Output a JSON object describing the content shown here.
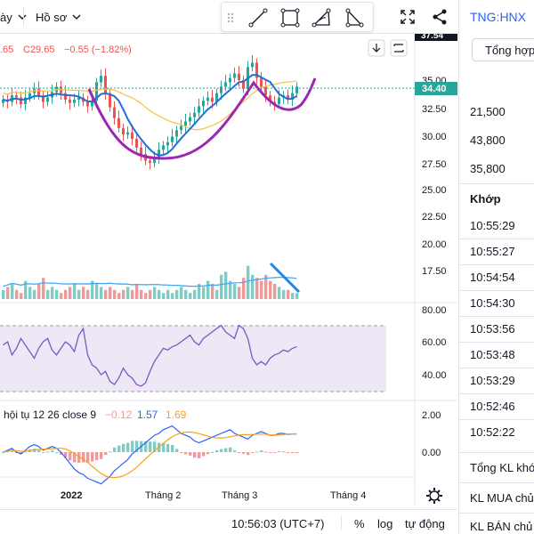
{
  "toolbar": {
    "interval_label": "ày",
    "profile_label": "Hồ sơ",
    "draw_tools": [
      "trend-line-tool",
      "rectangle-tool",
      "path-tool",
      "triangle-tool"
    ]
  },
  "legend": {
    "ohlc_text": ".65  C29.65  −0.55 (−1.82%)",
    "price_open_cut": ".65",
    "close_text": "C29.65",
    "change_text": "−0.55 (−1.82%)"
  },
  "price_axis": {
    "ticks": [
      "35.00",
      "32.50",
      "30.00",
      "27.50",
      "25.00",
      "22.50",
      "20.00",
      "17.50"
    ],
    "top_label": "37.54",
    "current_price": "34.40"
  },
  "rsi_axis": {
    "ticks": [
      "80.00",
      "60.00",
      "40.00"
    ]
  },
  "macd_legend": {
    "name": "hội tụ 12 26 close 9",
    "hist": "−0.12",
    "macd": "1.57",
    "signal": "1.69"
  },
  "macd_axis": {
    "ticks": [
      "2.00",
      "0.00"
    ]
  },
  "time_axis": {
    "labels": [
      "2022",
      "Tháng 2",
      "Tháng 3",
      "Tháng 4"
    ]
  },
  "bottom": {
    "clock": "10:56:03 (UTC+7)",
    "percent": "%",
    "log": "log",
    "auto": "tự động"
  },
  "right_panel": {
    "symbol": "TNG:HNX",
    "summary_button": "Tổng hợp",
    "prices": [
      "21,500",
      "43,800",
      "35,800"
    ],
    "match_header": "Khớp",
    "times": [
      "10:55:29",
      "10:55:27",
      "10:54:54",
      "10:54:30",
      "10:53:56",
      "10:53:48",
      "10:53:29",
      "10:52:46",
      "10:52:22"
    ],
    "totals": [
      "Tổng KL khớp",
      "KL MUA chủ",
      "KL BÁN chủ"
    ]
  },
  "colors": {
    "up": "#26a69a",
    "down": "#ef5350",
    "ma_blue": "#2962ff",
    "ma_yellow": "#f7c548",
    "cup_purple": "#9c27b0",
    "rsi_line": "#7e57c2",
    "rsi_fill": "#ede7f6",
    "accent": "#2962ff"
  }
}
